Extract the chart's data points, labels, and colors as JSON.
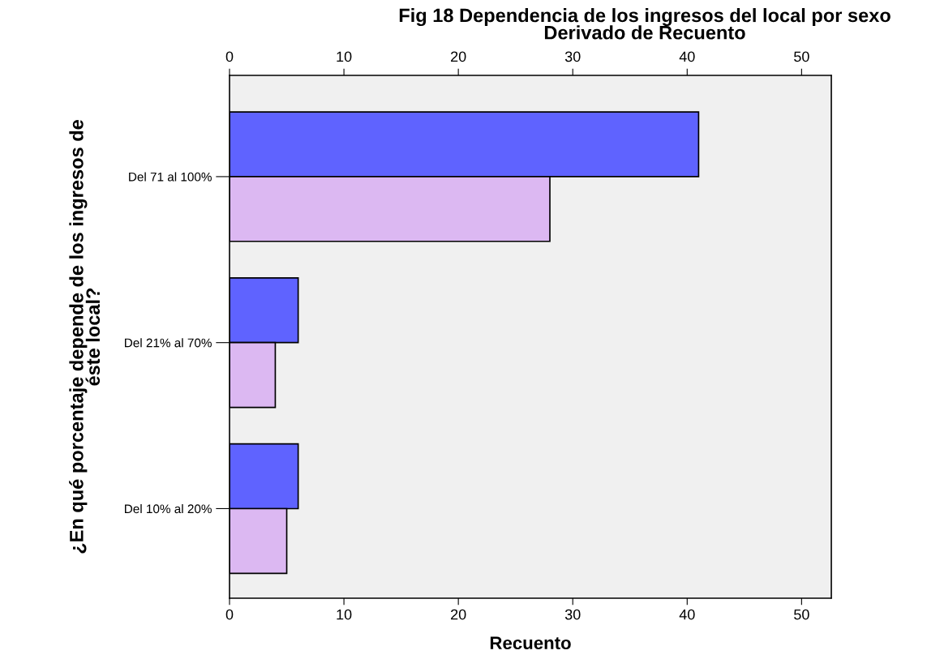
{
  "chart_data": {
    "type": "bar",
    "orientation": "horizontal",
    "title": "Fig 18 Dependencia de los ingresos del local por sexo\nDerivado de Recuento",
    "xlabel": "Recuento",
    "ylabel": "¿En qué porcentaje depende de los ingresos de\néste local?",
    "categories": [
      "Del 71 al 100%",
      "Del 21% al 70%",
      "Del 10% al 20%"
    ],
    "series": [
      {
        "color": "#5f63ff",
        "values": [
          41,
          6,
          6
        ]
      },
      {
        "color": "#dcb8f2",
        "values": [
          28,
          4,
          5
        ]
      }
    ],
    "xlim": [
      0,
      52.6
    ],
    "xticks": [
      0,
      10,
      20,
      30,
      40,
      50
    ],
    "x2lim": [
      0,
      52.6
    ],
    "x2ticks": [
      0,
      10,
      20,
      30,
      40,
      50
    ],
    "grid": false,
    "legend": false
  }
}
